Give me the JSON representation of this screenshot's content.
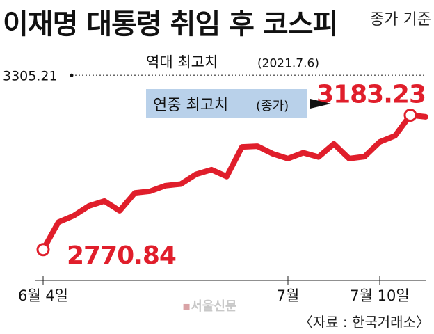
{
  "title": "이재명 대통령 취임 후 코스피",
  "subtitle": "종가 기준",
  "source": "〈자료 : 한국거래소〉",
  "watermark": "서울신문",
  "colors": {
    "line": "#e01e2b",
    "highlight_box": "#b9d1ea",
    "text": "#111111",
    "ref_line": "#666666"
  },
  "chart_data": {
    "type": "line",
    "unit": "종가",
    "x_ticks": [
      "6월 4일",
      "7월",
      "7월 10일"
    ],
    "x_tick_index": [
      0,
      16,
      22
    ],
    "ylim": [
      2700,
      3340
    ],
    "series": [
      {
        "values": [
          2770.84,
          2855,
          2875,
          2905,
          2920,
          2890,
          2945,
          2950,
          2967,
          2972,
          3002,
          3016,
          2995,
          3086,
          3088,
          3065,
          3050,
          3068,
          3055,
          3095,
          3050,
          3056,
          3101,
          3120,
          3183.23,
          3178
        ]
      }
    ],
    "reference_line": {
      "value": 3305.21,
      "value_label": "3305.21",
      "label": "역대 최고치",
      "date": "(2021.7.6)"
    },
    "annotations": {
      "start_label": "2770.84",
      "end_label": "3183.23",
      "year_high_label": "연중 최고치",
      "year_high_note": "(종가)"
    }
  }
}
